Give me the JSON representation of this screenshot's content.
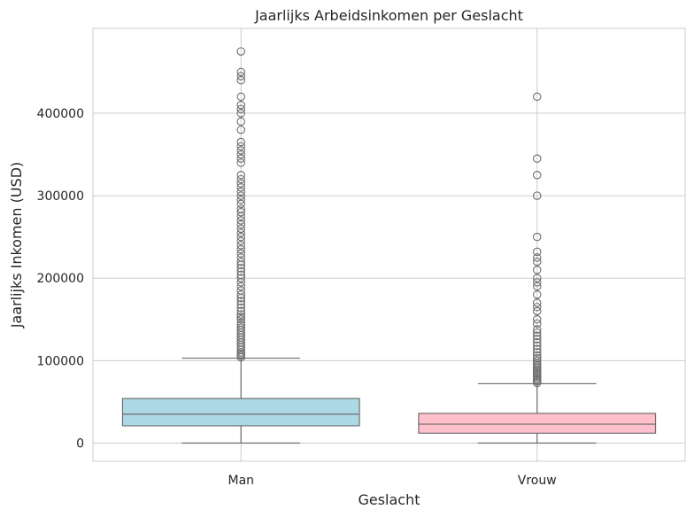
{
  "chart_data": {
    "type": "box",
    "title": "Jaarlijks Arbeidsinkomen per Geslacht",
    "xlabel": "Geslacht",
    "ylabel": "Jaarlijks Inkomen (USD)",
    "ylim": [
      -22000,
      503000
    ],
    "yticks": [
      0,
      100000,
      200000,
      300000,
      400000
    ],
    "ytick_labels": [
      "0",
      "100000",
      "200000",
      "300000",
      "400000"
    ],
    "grid": true,
    "categories": [
      "Man",
      "Vrouw"
    ],
    "boxes": [
      {
        "category": "Man",
        "color": "#add8e6",
        "whisker_low": 0,
        "q1": 21000,
        "median": 35000,
        "q3": 54000,
        "whisker_high": 103000,
        "outliers": [
          104000,
          106000,
          108000,
          110000,
          113000,
          116000,
          119000,
          122000,
          125000,
          128000,
          131000,
          134000,
          137000,
          140000,
          143000,
          146000,
          150000,
          153000,
          156000,
          160000,
          164000,
          168000,
          172000,
          176000,
          180000,
          185000,
          190000,
          195000,
          200000,
          204000,
          208000,
          212000,
          216000,
          220000,
          225000,
          230000,
          235000,
          240000,
          245000,
          250000,
          255000,
          260000,
          265000,
          270000,
          275000,
          280000,
          284000,
          290000,
          295000,
          300000,
          305000,
          310000,
          315000,
          320000,
          325000,
          340000,
          345000,
          350000,
          355000,
          360000,
          365000,
          380000,
          390000,
          400000,
          405000,
          410000,
          420000,
          440000,
          445000,
          450000,
          475000
        ]
      },
      {
        "category": "Vrouw",
        "color": "#ffc0cb",
        "whisker_low": 0,
        "q1": 12000,
        "median": 23000,
        "q3": 36000,
        "whisker_high": 72000,
        "outliers": [
          73000,
          75000,
          77000,
          79000,
          81000,
          83000,
          85000,
          87000,
          89000,
          91000,
          93000,
          95000,
          97000,
          100000,
          103000,
          106000,
          110000,
          114000,
          118000,
          122000,
          126000,
          130000,
          134000,
          138000,
          145000,
          150000,
          160000,
          165000,
          170000,
          180000,
          190000,
          195000,
          200000,
          210000,
          220000,
          225000,
          232000,
          250000,
          300000,
          325000,
          345000,
          420000
        ]
      }
    ]
  }
}
